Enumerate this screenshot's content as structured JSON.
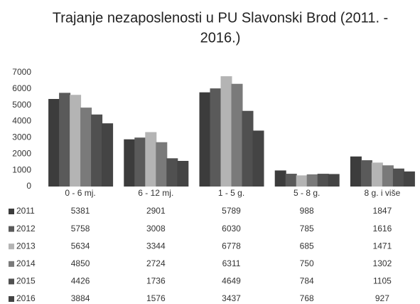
{
  "chart_data": {
    "type": "bar",
    "title": "Trajanje nezaposlenosti u PU Slavonski Brod (2011. -",
    "title_line2": "2016.)",
    "categories": [
      "0 - 6 mj.",
      "6 - 12 mj.",
      "1 - 5 g.",
      "5 - 8 g.",
      "8 g. i više"
    ],
    "series": [
      {
        "name": "2011",
        "color": "#3c3c3c",
        "values": [
          5381,
          2901,
          5789,
          988,
          1847
        ]
      },
      {
        "name": "2012",
        "color": "#5a5a5a",
        "values": [
          5758,
          3008,
          6030,
          785,
          1616
        ]
      },
      {
        "name": "2013",
        "color": "#b4b4b4",
        "values": [
          5634,
          3344,
          6778,
          685,
          1471
        ]
      },
      {
        "name": "2014",
        "color": "#7a7a7a",
        "values": [
          4850,
          2724,
          6311,
          750,
          1302
        ]
      },
      {
        "name": "2015",
        "color": "#505050",
        "values": [
          4426,
          1736,
          4649,
          784,
          1105
        ]
      },
      {
        "name": "2016",
        "color": "#444444",
        "values": [
          3884,
          1576,
          3437,
          768,
          927
        ]
      }
    ],
    "ylim": [
      0,
      7000
    ],
    "yticks": [
      0,
      1000,
      2000,
      3000,
      4000,
      5000,
      6000,
      7000
    ],
    "grid": false
  }
}
